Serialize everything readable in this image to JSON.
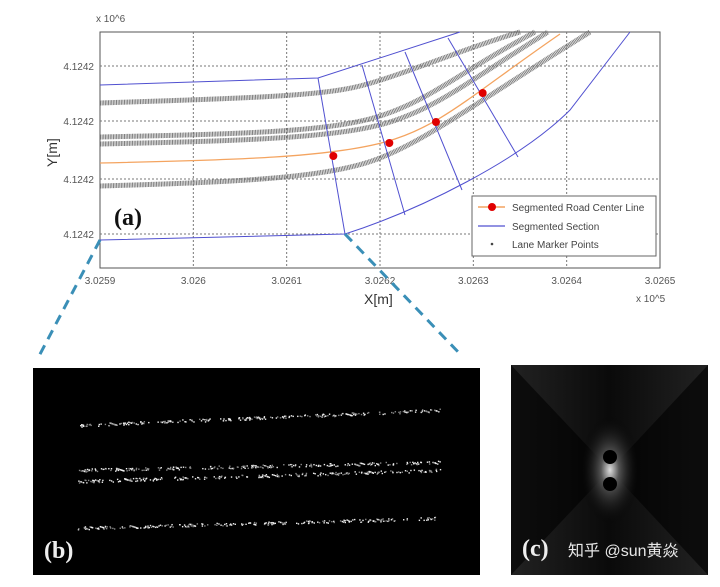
{
  "chart_data": {
    "type": "line",
    "title": "",
    "panel_labels": [
      "(a)",
      "(b)",
      "(c)"
    ],
    "xlabel": "X[m]",
    "ylabel": "Y[m]",
    "x_multiplier": "x 10^5",
    "y_multiplier": "x 10^6",
    "x_ticks": [
      "3.0259",
      "3.026",
      "3.0261",
      "3.0262",
      "3.0263",
      "3.0264",
      "3.0265"
    ],
    "y_ticks": [
      "4.1242",
      "4.1242",
      "4.1242",
      "4.1242"
    ],
    "xlim": [
      3.0259,
      3.0265
    ],
    "grid": true,
    "legend": {
      "placement": "bottom-right",
      "entries": [
        "Segmented Road Center Line",
        "Segmented Section",
        "Lane Marker Points"
      ]
    },
    "center_points_x": [
      3.02615,
      3.02621,
      3.02626,
      3.02631
    ],
    "colors": {
      "center": "#f4a460",
      "center_marker": "#e00000",
      "section": "#5050d0",
      "lane": "#666666",
      "zoom_lines": "#3a8fb7"
    }
  },
  "watermark": "知乎 @sun黄焱"
}
